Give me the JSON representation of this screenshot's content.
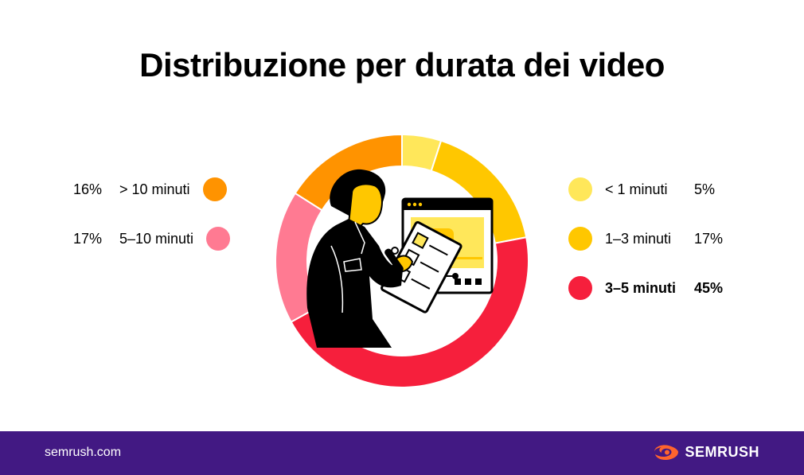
{
  "title": "Distribuzione per durata dei video",
  "chart_data": {
    "type": "pie",
    "donut": true,
    "title": "Distribuzione per durata dei video",
    "slices": [
      {
        "label": "< 1 minuti",
        "value": 5,
        "display": "5%",
        "color": "#FFE75A",
        "emphasis": false
      },
      {
        "label": "1–3 minuti",
        "value": 17,
        "display": "17%",
        "color": "#FFC700",
        "emphasis": false
      },
      {
        "label": "3–5 minuti",
        "value": 45,
        "display": "45%",
        "color": "#F61F3C",
        "emphasis": true
      },
      {
        "label": "5–10 minuti",
        "value": 17,
        "display": "17%",
        "color": "#FF7A92",
        "emphasis": false
      },
      {
        "label": "> 10 minuti",
        "value": 16,
        "display": "16%",
        "color": "#FF9300",
        "emphasis": false
      }
    ],
    "legend_placement": "left-and-right"
  },
  "legend": {
    "left": [
      {
        "pct": "16%",
        "label": "> 10 minuti",
        "color": "#FF9300"
      },
      {
        "pct": "17%",
        "label": "5–10 minuti",
        "color": "#FF7A92"
      }
    ],
    "right": [
      {
        "label": "< 1 minuti",
        "pct": "5%",
        "color": "#FFE75A"
      },
      {
        "label": "1–3 minuti",
        "pct": "17%",
        "color": "#FFC700"
      },
      {
        "label": "3–5 minuti",
        "pct": "45%",
        "color": "#F61F3C"
      }
    ]
  },
  "footer": {
    "site": "semrush.com",
    "brand": "SEMRUSH",
    "brand_icon": "semrush-flame-logo",
    "background": "#421983"
  },
  "illustration": {
    "icons": [
      "person-with-clipboard",
      "video-player-window",
      "play-icon"
    ],
    "play_color": "#FFC700"
  }
}
